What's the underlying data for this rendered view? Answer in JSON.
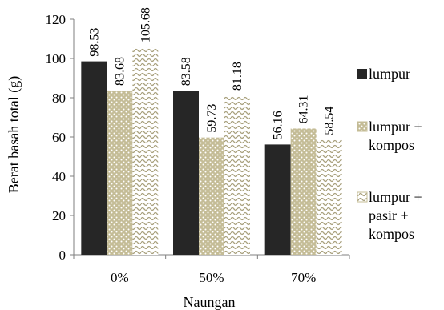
{
  "chart_data": {
    "type": "bar",
    "xlabel": "Naungan",
    "ylabel": "Berat basah total (g)",
    "categories": [
      "0%",
      "50%",
      "70%"
    ],
    "ylim": [
      0,
      120
    ],
    "yticks": [
      0,
      20,
      40,
      60,
      80,
      100,
      120
    ],
    "grid": false,
    "legend_position": "right",
    "series": [
      {
        "name": "lumpur",
        "legend_lines": [
          "lumpur"
        ],
        "values": [
          98.53,
          83.58,
          56.16
        ],
        "labels": [
          "98.53",
          "83.58",
          "56.16"
        ],
        "color": "#262626",
        "pattern": "solid"
      },
      {
        "name": "lumpur + kompos",
        "legend_lines": [
          "lumpur +",
          "kompos"
        ],
        "values": [
          83.68,
          59.73,
          64.31
        ],
        "labels": [
          "83.68",
          "59.73",
          "64.31"
        ],
        "color": "#c4bc96",
        "pattern": "dots"
      },
      {
        "name": "lumpur + pasir + kompos",
        "legend_lines": [
          "lumpur +",
          "pasir +",
          "kompos"
        ],
        "values": [
          105.68,
          81.18,
          58.54
        ],
        "labels": [
          "105.68",
          "81.18",
          "58.54"
        ],
        "color": "#c4bc96",
        "pattern": "waves"
      }
    ]
  }
}
